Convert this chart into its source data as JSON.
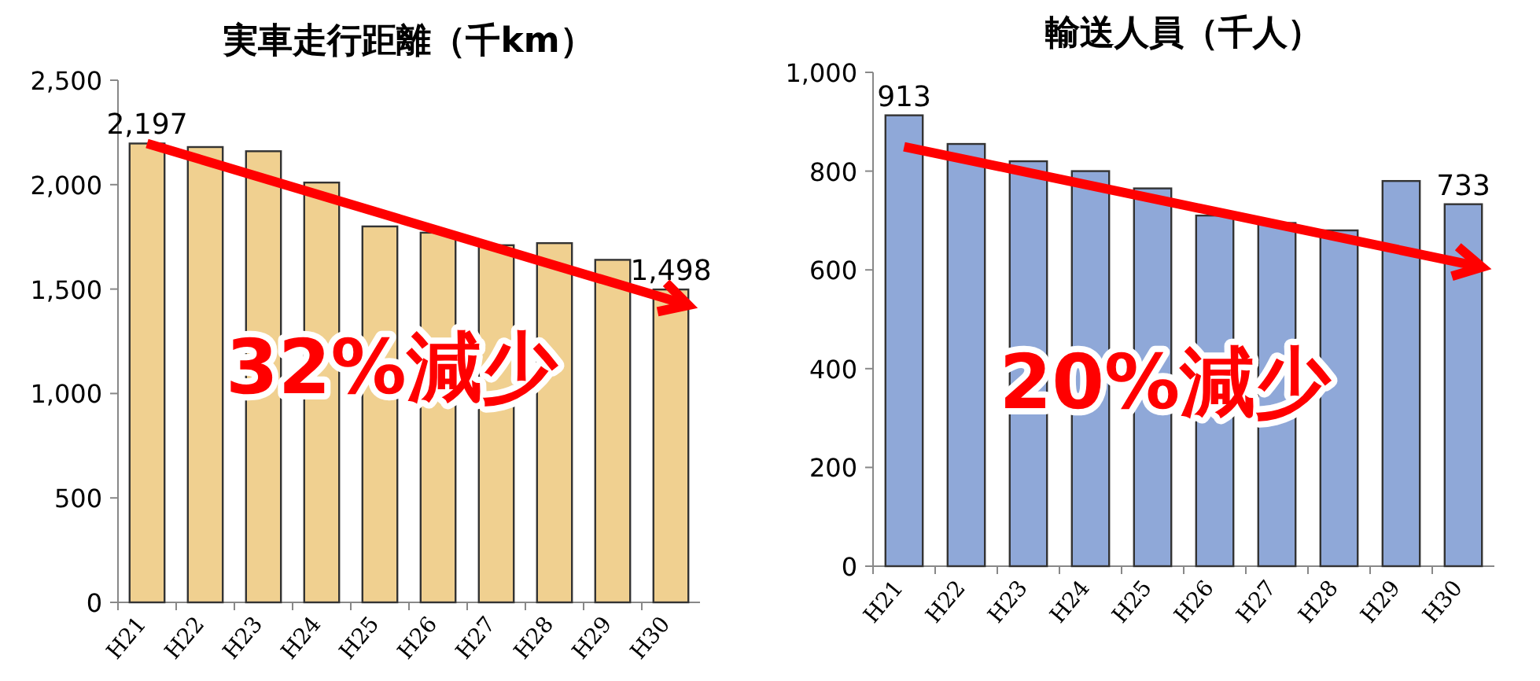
{
  "chart_data": [
    {
      "type": "bar",
      "title": "実車走行距離（千km）",
      "categories": [
        "H21",
        "H22",
        "H23",
        "H24",
        "H25",
        "H26",
        "H27",
        "H28",
        "H29",
        "H30"
      ],
      "series": [
        {
          "color": "#f0d090",
          "values": [
            2197,
            2180,
            2160,
            2010,
            1800,
            1770,
            1710,
            1720,
            1640,
            1498
          ],
          "value_labels": [
            "2,197",
            null,
            null,
            null,
            null,
            null,
            null,
            null,
            null,
            "1,498"
          ]
        }
      ],
      "ylim": [
        0,
        2500
      ],
      "yticks": [
        0,
        {
          "value": 500,
          "label": "500"
        },
        {
          "value": 1000,
          "label": "1,000"
        },
        {
          "value": 1500,
          "label": "1,500"
        },
        {
          "value": 2000,
          "label": "2,000"
        },
        {
          "value": 2500,
          "label": "2,500"
        }
      ],
      "annotations": [
        "32%減少"
      ]
    },
    {
      "type": "bar",
      "title": "輸送人員（千人）",
      "categories": [
        "H21",
        "H22",
        "H23",
        "H24",
        "H25",
        "H26",
        "H27",
        "H28",
        "H29",
        "H30"
      ],
      "series": [
        {
          "color": "#8fa8d8",
          "values": [
            913,
            855,
            820,
            800,
            765,
            710,
            695,
            680,
            780,
            733
          ],
          "value_labels": [
            "913",
            null,
            null,
            null,
            null,
            null,
            null,
            null,
            null,
            "733"
          ]
        }
      ],
      "ylim": [
        0,
        1000
      ],
      "yticks": [
        0,
        200,
        400,
        600,
        800,
        {
          "value": 1000,
          "label": "1,000"
        }
      ],
      "annotations": [
        "20%減少"
      ]
    }
  ]
}
